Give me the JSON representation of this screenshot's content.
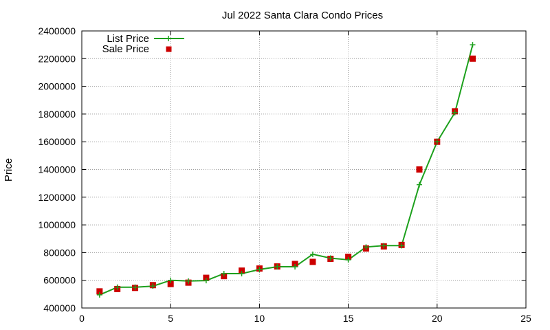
{
  "chart_data": {
    "type": "line",
    "title": "Jul 2022 Santa Clara Condo Prices",
    "xlabel": "",
    "ylabel": "Price",
    "xlim": [
      0,
      25
    ],
    "ylim": [
      400000,
      2400000
    ],
    "x_ticks": [
      0,
      5,
      10,
      15,
      20,
      25
    ],
    "y_ticks": [
      400000,
      600000,
      800000,
      1000000,
      1200000,
      1400000,
      1600000,
      1800000,
      2000000,
      2200000,
      2400000
    ],
    "grid": true,
    "legend_position": "top-left",
    "x": [
      1,
      2,
      3,
      4,
      5,
      6,
      7,
      8,
      9,
      10,
      11,
      12,
      13,
      14,
      15,
      16,
      17,
      18,
      19,
      20,
      21,
      22
    ],
    "series": [
      {
        "name": "List Price",
        "style": "line-with-plus-markers",
        "color": "#1ca01c",
        "values": [
          495000,
          550000,
          550000,
          558000,
          600000,
          595000,
          598000,
          648000,
          648000,
          678000,
          698000,
          698000,
          788000,
          760000,
          748000,
          840000,
          850000,
          850000,
          1290000,
          1600000,
          1810000,
          2300000
        ]
      },
      {
        "name": "Sale Price",
        "style": "square-markers",
        "color": "#cc0000",
        "values": [
          520000,
          537000,
          545000,
          565000,
          573000,
          583000,
          618000,
          630000,
          670000,
          685000,
          700000,
          718000,
          733000,
          755000,
          770000,
          830000,
          845000,
          855000,
          1400000,
          1600000,
          1820000,
          2200000
        ]
      }
    ]
  }
}
